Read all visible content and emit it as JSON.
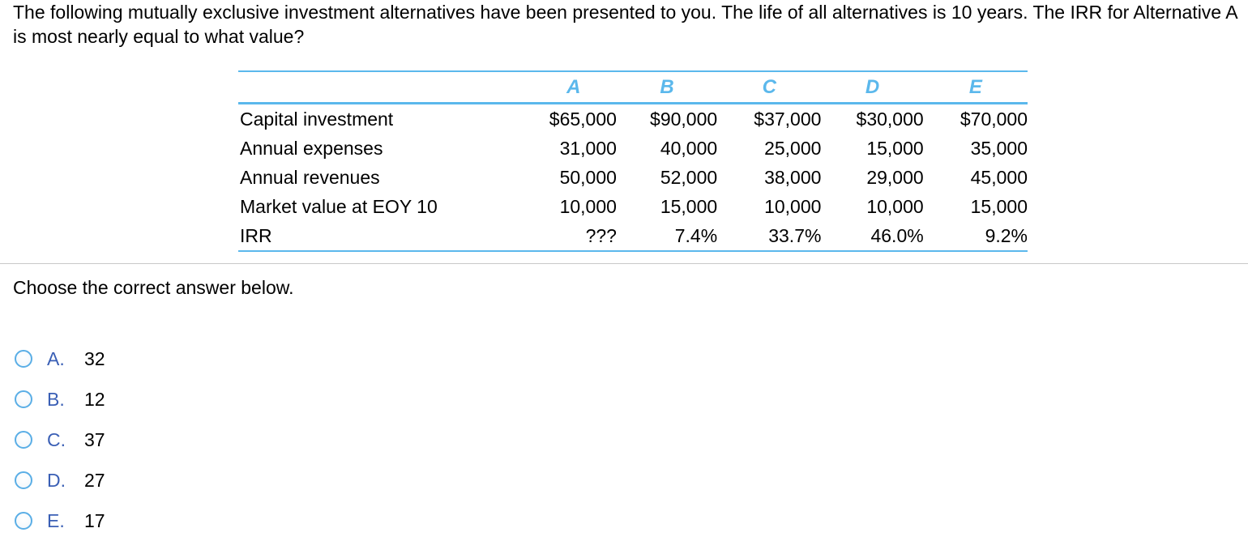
{
  "question": {
    "text": "The following mutually exclusive investment alternatives have been presented to you. The life of all alternatives is 10 years. The IRR for Alternative A is most nearly equal to what value?"
  },
  "table": {
    "headers": [
      "A",
      "B",
      "C",
      "D",
      "E"
    ],
    "rows": [
      {
        "label": "Capital investment",
        "values": [
          "$65,000",
          "$90,000",
          "$37,000",
          "$30,000",
          "$70,000"
        ]
      },
      {
        "label": "Annual expenses",
        "values": [
          "31,000",
          "40,000",
          "25,000",
          "15,000",
          "35,000"
        ]
      },
      {
        "label": "Annual revenues",
        "values": [
          "50,000",
          "52,000",
          "38,000",
          "29,000",
          "45,000"
        ]
      },
      {
        "label": "Market value at EOY 10",
        "values": [
          "10,000",
          "15,000",
          "10,000",
          "10,000",
          "15,000"
        ]
      },
      {
        "label": "IRR",
        "values": [
          "???",
          "7.4%",
          "33.7%",
          "46.0%",
          "9.2%"
        ]
      }
    ]
  },
  "instruction": "Choose the correct answer below.",
  "options": [
    {
      "letter": "A.",
      "value": "32"
    },
    {
      "letter": "B.",
      "value": "12"
    },
    {
      "letter": "C.",
      "value": "37"
    },
    {
      "letter": "D.",
      "value": "27"
    },
    {
      "letter": "E.",
      "value": "17"
    }
  ],
  "colors": {
    "accent": "#5bb8ec",
    "option_letter": "#3a5fb5",
    "radio_border": "#5aaee6",
    "divider": "#c8c8c8"
  },
  "icons": {
    "radio": "radio-button-icon"
  }
}
